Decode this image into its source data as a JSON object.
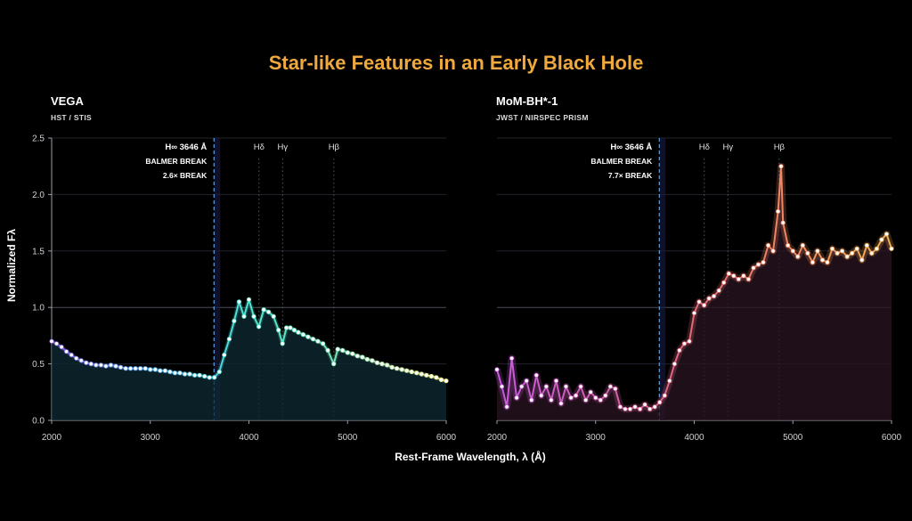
{
  "title": "Star-like Features in an Early Black Hole",
  "xlabel": "Rest-Frame Wavelength, λ (Å)",
  "ylabel": "Normalized Fλ",
  "chart_data": [
    {
      "type": "line",
      "title": "VEGA",
      "subtitle": "HST / STIS",
      "xlim": [
        2000,
        6000
      ],
      "ylim": [
        0,
        2.5
      ],
      "xticks": [
        "2000",
        "3000",
        "4000",
        "5000",
        "6000"
      ],
      "yticks": [
        "0.0",
        "0.5",
        "1.0",
        "1.5",
        "2.0",
        "2.5"
      ],
      "grid": true,
      "break_annotation": [
        "H∞ 3646 Å",
        "BALMER BREAK",
        "2.6× BREAK"
      ],
      "break_wavelength": 3646,
      "lines": [
        {
          "label": "Hδ",
          "x": 4102
        },
        {
          "label": "Hγ",
          "x": 4341
        },
        {
          "label": "Hβ",
          "x": 4861
        }
      ],
      "colors": [
        "#8a63e6",
        "#4fb0f0",
        "#49e6d0",
        "#7fe0b0",
        "#e6e070"
      ],
      "series": [
        {
          "x": [
            2000,
            2050,
            2100,
            2150,
            2200,
            2250,
            2300,
            2350,
            2400,
            2450,
            2500,
            2550,
            2600,
            2650,
            2700,
            2750,
            2800,
            2850,
            2900,
            2950,
            3000,
            3050,
            3100,
            3150,
            3200,
            3250,
            3300,
            3350,
            3400,
            3450,
            3500,
            3550,
            3600,
            3650,
            3700,
            3750,
            3800,
            3850,
            3900,
            3950,
            4000,
            4050,
            4100,
            4150,
            4200,
            4250,
            4300,
            4340,
            4380,
            4420,
            4460,
            4500,
            4550,
            4600,
            4650,
            4700,
            4750,
            4800,
            4860,
            4900,
            4950,
            5000,
            5050,
            5100,
            5150,
            5200,
            5250,
            5300,
            5350,
            5400,
            5450,
            5500,
            5550,
            5600,
            5650,
            5700,
            5750,
            5800,
            5850,
            5900,
            5950,
            6000
          ],
          "values": [
            0.7,
            0.68,
            0.65,
            0.61,
            0.58,
            0.55,
            0.53,
            0.51,
            0.5,
            0.49,
            0.49,
            0.48,
            0.49,
            0.48,
            0.47,
            0.46,
            0.46,
            0.46,
            0.46,
            0.46,
            0.45,
            0.45,
            0.44,
            0.44,
            0.43,
            0.42,
            0.42,
            0.41,
            0.41,
            0.4,
            0.4,
            0.39,
            0.38,
            0.38,
            0.43,
            0.58,
            0.72,
            0.88,
            1.05,
            0.92,
            1.07,
            0.92,
            0.83,
            0.98,
            0.96,
            0.92,
            0.8,
            0.68,
            0.82,
            0.82,
            0.8,
            0.78,
            0.76,
            0.74,
            0.72,
            0.7,
            0.68,
            0.62,
            0.5,
            0.63,
            0.62,
            0.6,
            0.59,
            0.57,
            0.56,
            0.54,
            0.53,
            0.51,
            0.5,
            0.49,
            0.47,
            0.46,
            0.45,
            0.44,
            0.43,
            0.42,
            0.41,
            0.4,
            0.39,
            0.38,
            0.36,
            0.35
          ]
        }
      ]
    },
    {
      "type": "line",
      "title": "MoM-BH*-1",
      "subtitle": "JWST / NIRSPEC PRISM",
      "xlim": [
        2000,
        6000
      ],
      "ylim": [
        0,
        2.5
      ],
      "xticks": [
        "2000",
        "3000",
        "4000",
        "5000",
        "6000"
      ],
      "grid": true,
      "break_annotation": [
        "H∞ 3646 Å",
        "BALMER BREAK",
        "7.7× BREAK"
      ],
      "break_wavelength": 3646,
      "lines": [
        {
          "label": "Hδ",
          "x": 4102
        },
        {
          "label": "Hγ",
          "x": 4341
        },
        {
          "label": "Hβ",
          "x": 4861
        }
      ],
      "colors": [
        "#c95ae0",
        "#d05fb0",
        "#e66a78",
        "#f08a60",
        "#f0b050"
      ],
      "series": [
        {
          "x": [
            2000,
            2050,
            2100,
            2150,
            2200,
            2250,
            2300,
            2350,
            2400,
            2450,
            2500,
            2550,
            2600,
            2650,
            2700,
            2750,
            2800,
            2850,
            2900,
            2950,
            3000,
            3050,
            3100,
            3150,
            3200,
            3250,
            3300,
            3350,
            3400,
            3450,
            3500,
            3550,
            3600,
            3650,
            3700,
            3750,
            3800,
            3850,
            3900,
            3950,
            4000,
            4050,
            4100,
            4150,
            4200,
            4250,
            4300,
            4350,
            4400,
            4450,
            4500,
            4550,
            4600,
            4650,
            4700,
            4750,
            4800,
            4850,
            4880,
            4900,
            4950,
            5000,
            5050,
            5100,
            5150,
            5200,
            5250,
            5300,
            5350,
            5400,
            5450,
            5500,
            5550,
            5600,
            5650,
            5700,
            5750,
            5800,
            5850,
            5900,
            5950,
            6000
          ],
          "values": [
            0.45,
            0.3,
            0.12,
            0.55,
            0.2,
            0.3,
            0.35,
            0.18,
            0.4,
            0.22,
            0.3,
            0.18,
            0.35,
            0.15,
            0.3,
            0.2,
            0.22,
            0.3,
            0.18,
            0.25,
            0.2,
            0.18,
            0.22,
            0.3,
            0.28,
            0.12,
            0.1,
            0.1,
            0.12,
            0.1,
            0.14,
            0.1,
            0.12,
            0.16,
            0.22,
            0.35,
            0.5,
            0.62,
            0.68,
            0.7,
            0.95,
            1.05,
            1.02,
            1.08,
            1.1,
            1.15,
            1.22,
            1.3,
            1.28,
            1.25,
            1.28,
            1.25,
            1.35,
            1.38,
            1.4,
            1.55,
            1.5,
            1.85,
            2.25,
            1.75,
            1.55,
            1.5,
            1.45,
            1.55,
            1.48,
            1.4,
            1.5,
            1.42,
            1.4,
            1.52,
            1.48,
            1.5,
            1.45,
            1.48,
            1.52,
            1.42,
            1.55,
            1.48,
            1.52,
            1.6,
            1.65,
            1.52
          ]
        }
      ]
    }
  ]
}
